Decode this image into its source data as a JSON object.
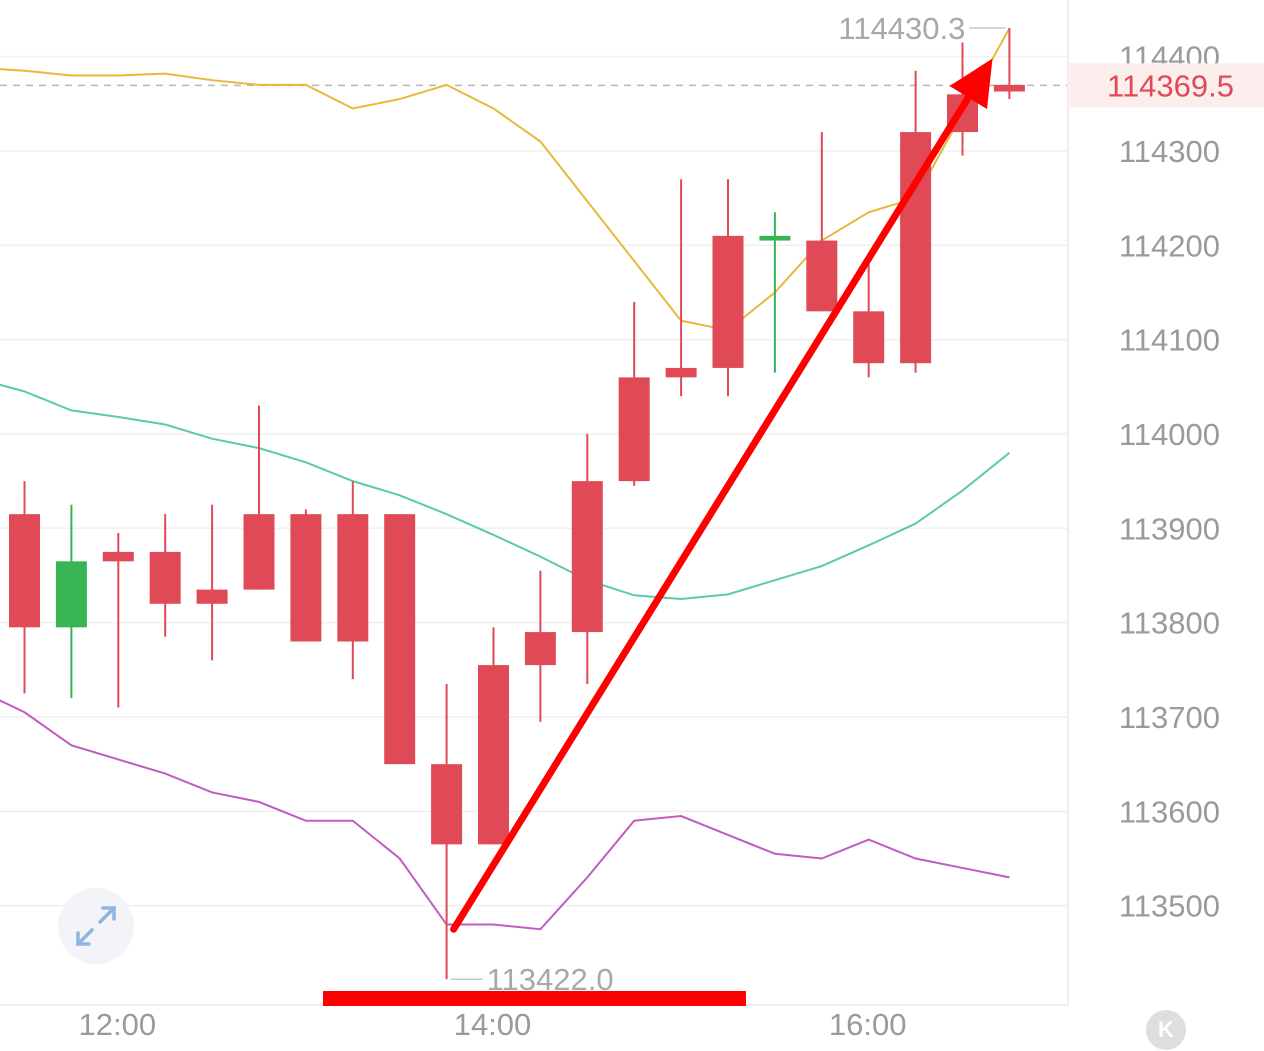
{
  "chart_data": {
    "type": "candlestick",
    "x_ticks": [
      "12:00",
      "14:00",
      "16:00"
    ],
    "y_ticks": [
      "113500",
      "113600",
      "113700",
      "113800",
      "113900",
      "114000",
      "114100",
      "114200",
      "114300",
      "114400"
    ],
    "ylim": [
      113400,
      114460
    ],
    "current_price": "114369.5",
    "high_label": "114430.3",
    "low_label": "113422.0",
    "candles": [
      {
        "o": 113795,
        "h": 113950,
        "l": 113725,
        "c": 113915
      },
      {
        "o": 113865,
        "h": 113925,
        "l": 113720,
        "c": 113795
      },
      {
        "o": 113865,
        "h": 113895,
        "l": 113710,
        "c": 113875
      },
      {
        "o": 113820,
        "h": 113915,
        "l": 113785,
        "c": 113875
      },
      {
        "o": 113820,
        "h": 113925,
        "l": 113760,
        "c": 113835
      },
      {
        "o": 113835,
        "h": 114030,
        "l": 113835,
        "c": 113915
      },
      {
        "o": 113780,
        "h": 113920,
        "l": 113780,
        "c": 113915
      },
      {
        "o": 113780,
        "h": 113950,
        "l": 113740,
        "c": 113915
      },
      {
        "o": 113650,
        "h": 113915,
        "l": 113650,
        "c": 113915
      },
      {
        "o": 113565,
        "h": 113735,
        "l": 113422,
        "c": 113650
      },
      {
        "o": 113565,
        "h": 113795,
        "l": 113565,
        "c": 113755
      },
      {
        "o": 113755,
        "h": 113855,
        "l": 113695,
        "c": 113790
      },
      {
        "o": 113790,
        "h": 114000,
        "l": 113735,
        "c": 113950
      },
      {
        "o": 113950,
        "h": 114140,
        "l": 113945,
        "c": 114060
      },
      {
        "o": 114060,
        "h": 114270,
        "l": 114040,
        "c": 114070
      },
      {
        "o": 114070,
        "h": 114270,
        "l": 114040,
        "c": 114210
      },
      {
        "o": 114210,
        "h": 114235,
        "l": 114065,
        "c": 114205
      },
      {
        "o": 114130,
        "h": 114320,
        "l": 114130,
        "c": 114205
      },
      {
        "o": 114075,
        "h": 114180,
        "l": 114060,
        "c": 114130
      },
      {
        "o": 114075,
        "h": 114385,
        "l": 114065,
        "c": 114320
      },
      {
        "o": 114320,
        "h": 114415,
        "l": 114295,
        "c": 114360
      },
      {
        "o": 114363,
        "h": 114430.3,
        "l": 114355,
        "c": 114370
      }
    ],
    "bollinger": {
      "upper": [
        114385,
        114380,
        114380,
        114382,
        114375,
        114370,
        114370,
        114345,
        114355,
        114370,
        114345,
        114310,
        null,
        null,
        114120,
        114110,
        114150,
        114205,
        114235,
        114250,
        114340,
        114430
      ],
      "middle": [
        114045,
        114025,
        114018,
        114010,
        113995,
        113985,
        113970,
        113950,
        113935,
        113915,
        113893,
        113870,
        113845,
        113829,
        113825,
        113830,
        113845,
        113860,
        113882,
        113905,
        113940,
        113980
      ],
      "lower": [
        113705,
        113670,
        113655,
        113640,
        113620,
        113610,
        113590,
        113590,
        113550,
        113480,
        113480,
        113475,
        113530,
        113590,
        113595,
        113575,
        113555,
        113550,
        113570,
        113550,
        113540,
        113530
      ]
    },
    "bollinger_colors": {
      "upper": "#e8b83a",
      "middle": "#5ccaa8",
      "lower": "#c25bc1"
    },
    "up_color": "#e04a57",
    "down_color": "#36b552",
    "annotation_color": "#ff0000"
  }
}
